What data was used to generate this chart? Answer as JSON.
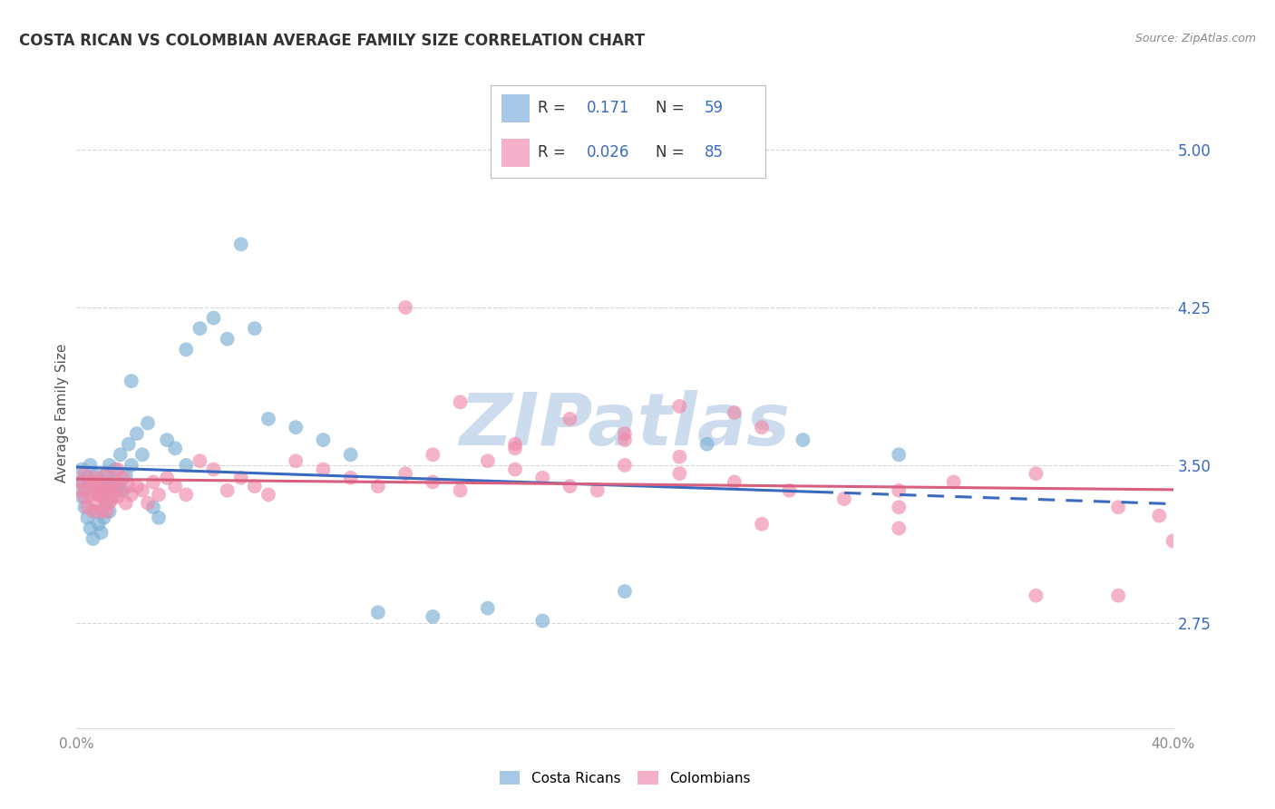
{
  "title": "COSTA RICAN VS COLOMBIAN AVERAGE FAMILY SIZE CORRELATION CHART",
  "source": "Source: ZipAtlas.com",
  "ylabel": "Average Family Size",
  "right_yticks": [
    2.75,
    3.5,
    4.25,
    5.0
  ],
  "xlim": [
    0.0,
    0.4
  ],
  "ylim": [
    2.25,
    5.25
  ],
  "costa_rican_R": "0.171",
  "costa_rican_N": "59",
  "colombian_R": "0.026",
  "colombian_N": "85",
  "blue_dot_color": "#7aafd4",
  "blue_line_color": "#3a6abf",
  "pink_dot_color": "#f08aaa",
  "pink_line_color": "#d95f80",
  "legend_blue_fill": "#a8c8e8",
  "legend_pink_fill": "#f4b0c8",
  "legend_R_N_color": "#3a6abf",
  "watermark": "ZIPatlas",
  "watermark_color": "#ccdcee",
  "grid_color": "#cccccc",
  "background_color": "#ffffff",
  "title_color": "#333333",
  "source_color": "#888888",
  "ylabel_color": "#555555",
  "ytick_color": "#3a6abf",
  "xtick_color": "#888888",
  "dot_size": 130,
  "dot_alpha": 0.65,
  "line_width": 2.2,
  "costa_rican_x": [
    0.001,
    0.002,
    0.002,
    0.003,
    0.003,
    0.004,
    0.004,
    0.005,
    0.005,
    0.006,
    0.006,
    0.007,
    0.007,
    0.008,
    0.008,
    0.009,
    0.009,
    0.01,
    0.01,
    0.011,
    0.011,
    0.012,
    0.012,
    0.013,
    0.013,
    0.014,
    0.015,
    0.016,
    0.017,
    0.018,
    0.019,
    0.02,
    0.022,
    0.024,
    0.026,
    0.028,
    0.03,
    0.033,
    0.036,
    0.04,
    0.045,
    0.05,
    0.055,
    0.06,
    0.065,
    0.07,
    0.08,
    0.09,
    0.1,
    0.11,
    0.13,
    0.15,
    0.17,
    0.2,
    0.23,
    0.265,
    0.3,
    0.02,
    0.04
  ],
  "costa_rican_y": [
    3.42,
    3.35,
    3.48,
    3.3,
    3.38,
    3.25,
    3.44,
    3.2,
    3.5,
    3.15,
    3.4,
    3.28,
    3.45,
    3.22,
    3.36,
    3.18,
    3.42,
    3.25,
    3.38,
    3.32,
    3.46,
    3.28,
    3.5,
    3.35,
    3.42,
    3.48,
    3.4,
    3.55,
    3.38,
    3.45,
    3.6,
    3.5,
    3.65,
    3.55,
    3.7,
    3.3,
    3.25,
    3.62,
    3.58,
    3.5,
    4.15,
    4.2,
    4.1,
    4.55,
    4.15,
    3.72,
    3.68,
    3.62,
    3.55,
    2.8,
    2.78,
    2.82,
    2.76,
    2.9,
    3.6,
    3.62,
    3.55,
    3.9,
    4.05
  ],
  "colombian_x": [
    0.001,
    0.002,
    0.003,
    0.003,
    0.004,
    0.005,
    0.005,
    0.006,
    0.006,
    0.007,
    0.007,
    0.008,
    0.008,
    0.009,
    0.009,
    0.01,
    0.01,
    0.011,
    0.011,
    0.012,
    0.012,
    0.013,
    0.013,
    0.014,
    0.015,
    0.015,
    0.016,
    0.017,
    0.018,
    0.019,
    0.02,
    0.022,
    0.024,
    0.026,
    0.028,
    0.03,
    0.033,
    0.036,
    0.04,
    0.045,
    0.05,
    0.055,
    0.06,
    0.065,
    0.07,
    0.08,
    0.09,
    0.1,
    0.11,
    0.12,
    0.13,
    0.14,
    0.15,
    0.16,
    0.17,
    0.18,
    0.19,
    0.2,
    0.22,
    0.24,
    0.26,
    0.28,
    0.3,
    0.32,
    0.35,
    0.38,
    0.395,
    0.12,
    0.14,
    0.22,
    0.24,
    0.18,
    0.3,
    0.25,
    0.35,
    0.25,
    0.2,
    0.3,
    0.38,
    0.16,
    0.13,
    0.2,
    0.4,
    0.22,
    0.16
  ],
  "colombian_y": [
    3.38,
    3.42,
    3.35,
    3.46,
    3.3,
    3.42,
    3.36,
    3.4,
    3.28,
    3.44,
    3.32,
    3.36,
    3.42,
    3.28,
    3.38,
    3.34,
    3.4,
    3.28,
    3.46,
    3.32,
    3.38,
    3.34,
    3.4,
    3.42,
    3.35,
    3.48,
    3.38,
    3.44,
    3.32,
    3.4,
    3.36,
    3.4,
    3.38,
    3.32,
    3.42,
    3.36,
    3.44,
    3.4,
    3.36,
    3.52,
    3.48,
    3.38,
    3.44,
    3.4,
    3.36,
    3.52,
    3.48,
    3.44,
    3.4,
    3.46,
    3.42,
    3.38,
    3.52,
    3.48,
    3.44,
    3.4,
    3.38,
    3.5,
    3.46,
    3.42,
    3.38,
    3.34,
    3.38,
    3.42,
    3.46,
    3.3,
    3.26,
    4.25,
    3.8,
    3.78,
    3.75,
    3.72,
    3.2,
    3.22,
    2.88,
    3.68,
    3.65,
    3.3,
    2.88,
    3.6,
    3.55,
    3.62,
    3.14,
    3.54,
    3.58
  ]
}
